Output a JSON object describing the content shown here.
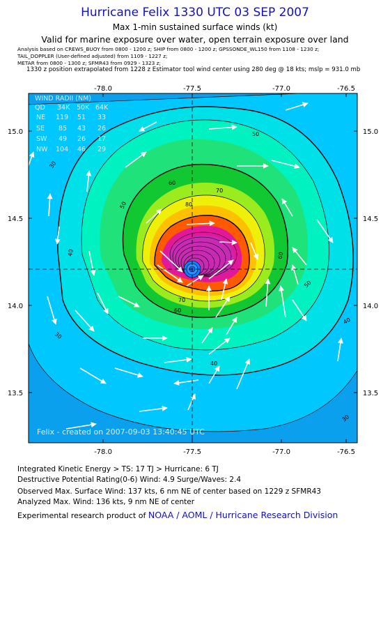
{
  "header": {
    "title": "Hurricane Felix 1330 UTC 03 SEP 2007",
    "subtitle": "Max 1-min sustained surface winds (kt)",
    "validity": "Valid for marine exposure over water, open terrain exposure over land",
    "analysis_line1": "Analysis based on  CREWS_BUOY from 0800 - 1200 z;  SHIP from 0800 - 1200 z;  GPSSONDE_WL150 from 1108 - 1230 z;",
    "analysis_line2": "TAIL_DOPPLER (User-defined adjusted) from 1109 - 1227 z;",
    "analysis_line3": "METAR from 0800 - 1300 z;  SFMR43 from 0929 - 1323 z;",
    "position_note": "1330 z position extrapolated from 1228 z Estimator tool wind center using 280 deg @ 18 kts; mslp = 931.0 mb"
  },
  "map": {
    "lon_ticks": [
      "-78.0",
      "-77.5",
      "-77.0",
      "-76.5"
    ],
    "lat_ticks": [
      "15.0",
      "14.5",
      "14.0",
      "13.5"
    ],
    "contour_labels": [
      "30",
      "30",
      "30",
      "40",
      "40",
      "40",
      "50",
      "50",
      "50",
      "60",
      "60",
      "60",
      "70",
      "70",
      "80"
    ],
    "credit": "Felix - created on 2007-09-03 13:40:45 UTC",
    "wind_radii": {
      "title": "WIND RADII (NM)",
      "header": [
        "QD",
        "34K",
        "50K",
        "64K"
      ],
      "rows": [
        [
          "NE",
          "119",
          "51",
          "33"
        ],
        [
          "SE",
          "85",
          "43",
          "26"
        ],
        [
          "SW",
          "49",
          "26",
          "17"
        ],
        [
          "NW",
          "104",
          "46",
          "29"
        ]
      ]
    },
    "colors": {
      "band_25": "#0aa0ee",
      "band_30": "#00c8ff",
      "band_40": "#00e0e8",
      "band_50": "#00f2c0",
      "band_55": "#20e27a",
      "band_60": "#12c832",
      "band_65": "#9aec1e",
      "band_70": "#eef00a",
      "band_75": "#ffc000",
      "band_80": "#ff5a00",
      "band_90": "#e2189a",
      "band_100": "#c82ab4"
    }
  },
  "footer": {
    "ike": "Integrated Kinetic Energy > TS: 17 TJ   > Hurricane: 6 TJ",
    "dpr": "Destructive Potential Rating(0-6)   Wind: 4.9 Surge/Waves: 2.4",
    "observed": "Observed Max. Surface Wind: 137 kts, 6 nm NE of center based on 1229 z SFMR43",
    "analyzed": "Analyzed Max. Wind: 136 kts, 9 nm NE of center",
    "product_prefix": "Experimental research product of ",
    "product_link": "NOAA / AOML / Hurricane Research Division"
  }
}
